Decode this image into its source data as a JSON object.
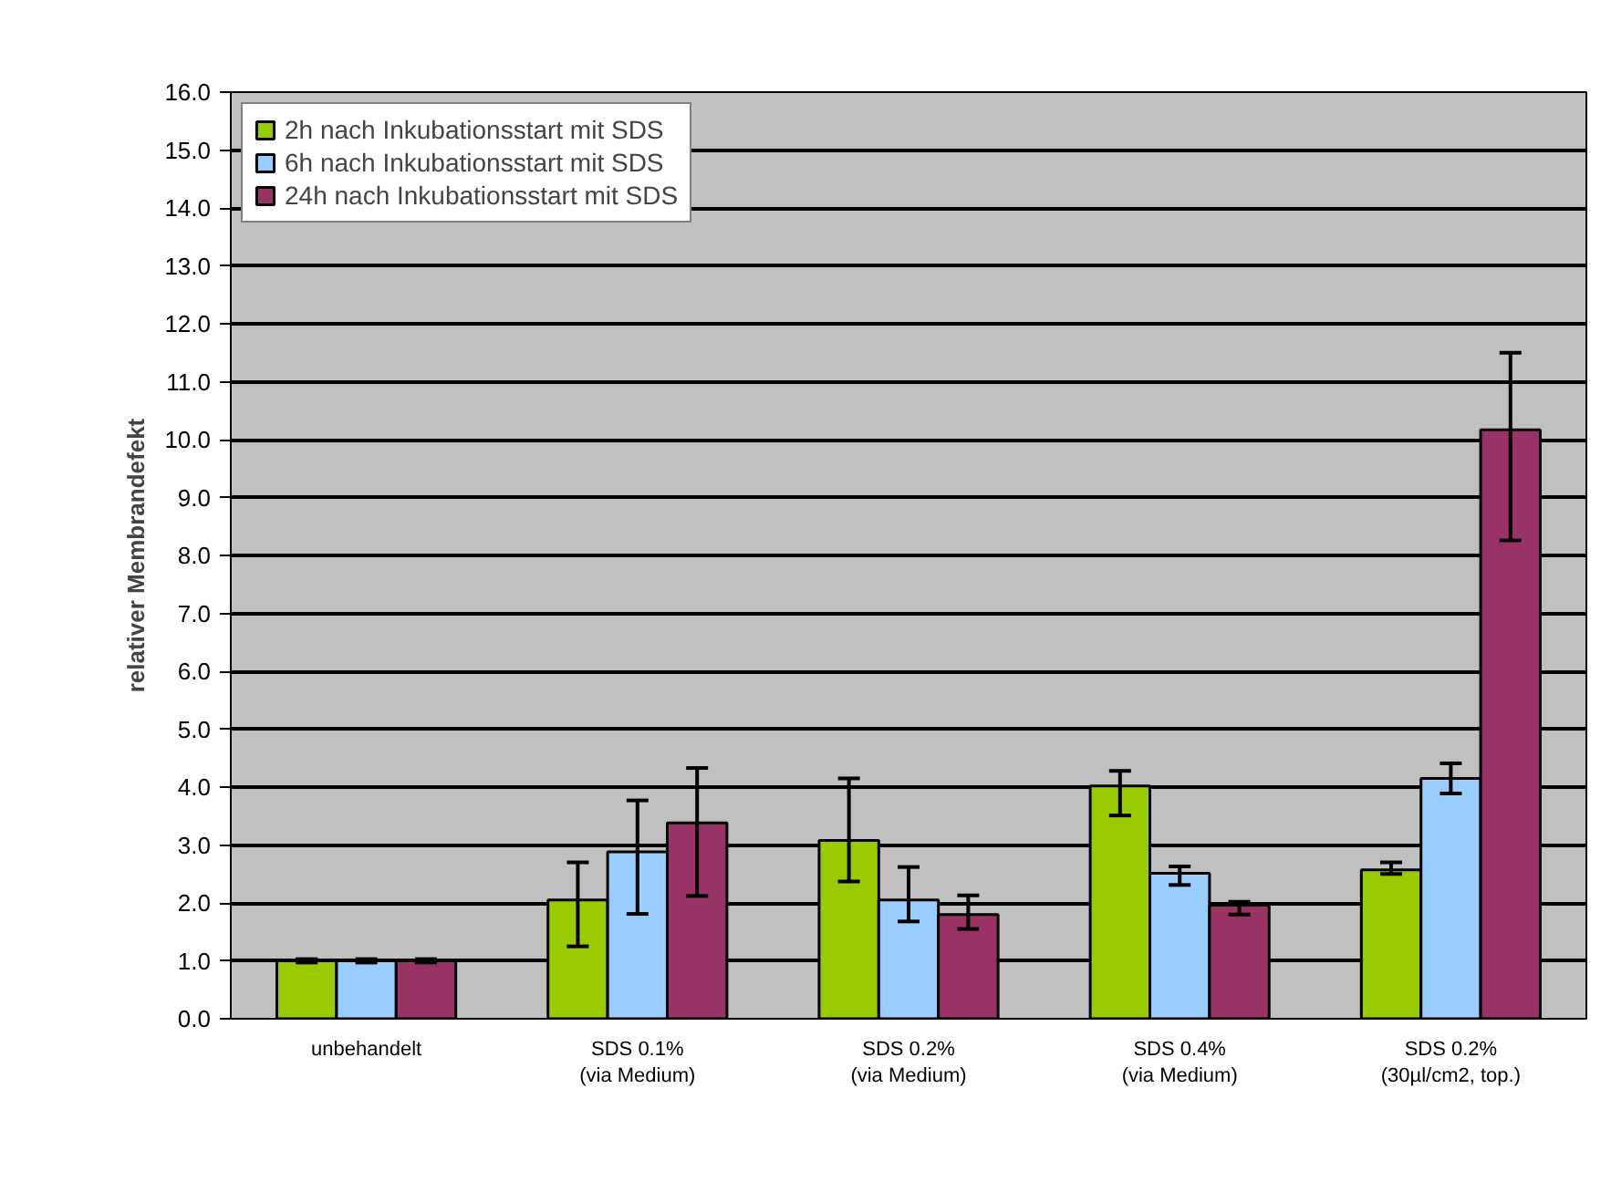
{
  "chart_data": {
    "type": "bar",
    "ylabel": "relativer Membrandefekt",
    "categories": [
      "unbehandelt",
      "SDS 0.1%\n(via Medium)",
      "SDS 0.2%\n(via Medium)",
      "SDS 0.4%\n(via Medium)",
      "SDS 0.2%\n(30µl/cm2, top.)"
    ],
    "series": [
      {
        "name": "2h nach Inkubationsstart mit SDS",
        "color": "#99cc00",
        "values": [
          1.0,
          2.05,
          3.08,
          4.02,
          2.57
        ],
        "errors": [
          [
            0.97,
            1.03
          ],
          [
            1.25,
            2.7
          ],
          [
            2.37,
            4.15
          ],
          [
            3.51,
            4.28
          ],
          [
            2.5,
            2.7
          ]
        ]
      },
      {
        "name": "6h nach Inkubationsstart mit SDS",
        "color": "#99ccff",
        "values": [
          1.0,
          2.88,
          2.05,
          2.51,
          4.15
        ],
        "errors": [
          [
            0.97,
            1.03
          ],
          [
            1.81,
            3.77
          ],
          [
            1.68,
            2.62
          ],
          [
            2.31,
            2.63
          ],
          [
            3.89,
            4.41
          ]
        ]
      },
      {
        "name": "24h nach Inkubationsstart mit SDS",
        "color": "#993366",
        "values": [
          1.0,
          3.38,
          1.8,
          1.96,
          10.17
        ],
        "errors": [
          [
            0.97,
            1.03
          ],
          [
            2.12,
            4.33
          ],
          [
            1.55,
            2.13
          ],
          [
            1.8,
            2.02
          ],
          [
            8.26,
            11.5
          ]
        ]
      }
    ],
    "ylim": [
      0,
      16
    ],
    "yticks": [
      {
        "value": 0,
        "label": "0.0"
      },
      {
        "value": 1,
        "label": "1.0"
      },
      {
        "value": 2,
        "label": "2.0"
      },
      {
        "value": 3,
        "label": "3.0"
      },
      {
        "value": 4,
        "label": "4.0"
      },
      {
        "value": 5,
        "label": "5.0"
      },
      {
        "value": 6,
        "label": "6.0"
      },
      {
        "value": 7,
        "label": "7.0"
      },
      {
        "value": 8,
        "label": "8.0"
      },
      {
        "value": 9,
        "label": "9.0"
      },
      {
        "value": 10,
        "label": "10.0"
      },
      {
        "value": 11,
        "label": "11.0"
      },
      {
        "value": 12,
        "label": "12.0"
      },
      {
        "value": 13,
        "label": "13.0"
      },
      {
        "value": 14,
        "label": "14.0"
      },
      {
        "value": 15,
        "label": "15.0"
      },
      {
        "value": 16,
        "label": "16.0"
      }
    ],
    "grid": "y",
    "legend": "top left"
  }
}
